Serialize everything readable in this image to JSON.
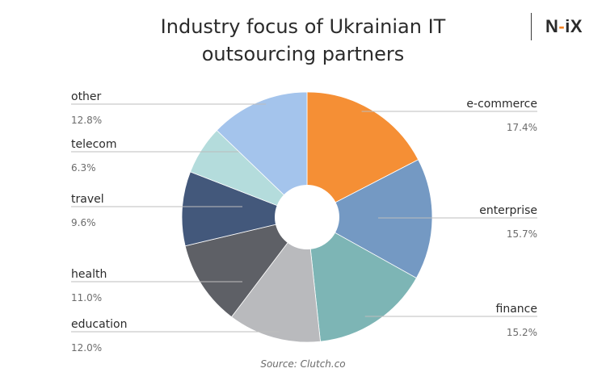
{
  "title_lines": [
    "Industry focus of Ukrainian IT",
    "outsourcing partners"
  ],
  "brand": {
    "left": "N",
    "dash": "-",
    "right": "iX",
    "accent_color": "#f58220"
  },
  "source": "Source: Clutch.co",
  "chart_data": {
    "type": "pie",
    "donut": true,
    "title": "Industry focus of Ukrainian IT outsourcing partners",
    "unit": "%",
    "slices": [
      {
        "label": "e-commerce",
        "value": 17.4,
        "display": "17.4%",
        "color": "#f58f35"
      },
      {
        "label": "enterprise",
        "value": 15.7,
        "display": "15.7%",
        "color": "#7499c3"
      },
      {
        "label": "finance",
        "value": 15.2,
        "display": "15.2%",
        "color": "#7db5b5"
      },
      {
        "label": "education",
        "value": 12.0,
        "display": "12.0%",
        "color": "#b9babd"
      },
      {
        "label": "health",
        "value": 11.0,
        "display": "11.0%",
        "color": "#5e6066"
      },
      {
        "label": "travel",
        "value": 9.6,
        "display": "9.6%",
        "color": "#43587b"
      },
      {
        "label": "telecom",
        "value": 6.3,
        "display": "6.3%",
        "color": "#b4dcdc"
      },
      {
        "label": "other",
        "value": 12.8,
        "display": "12.8%",
        "color": "#a4c4ec"
      }
    ]
  }
}
